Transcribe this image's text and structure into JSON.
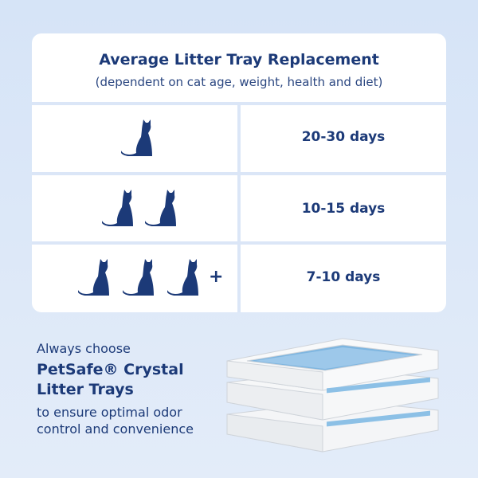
{
  "header": {
    "title": "Average Litter Tray Replacement",
    "subtitle": "(dependent on cat age, weight, health and diet)"
  },
  "table": {
    "rows": [
      {
        "days": "20-30 days"
      },
      {
        "days": "10-15 days"
      },
      {
        "days": "7-10 days",
        "extra": "+"
      }
    ]
  },
  "footer": {
    "intro": "Always choose",
    "product_lines": [
      "PetSafe® Crystal",
      "Litter Trays"
    ],
    "closing_lines": [
      "to ensure optimal odor",
      "control and convenience"
    ]
  }
}
